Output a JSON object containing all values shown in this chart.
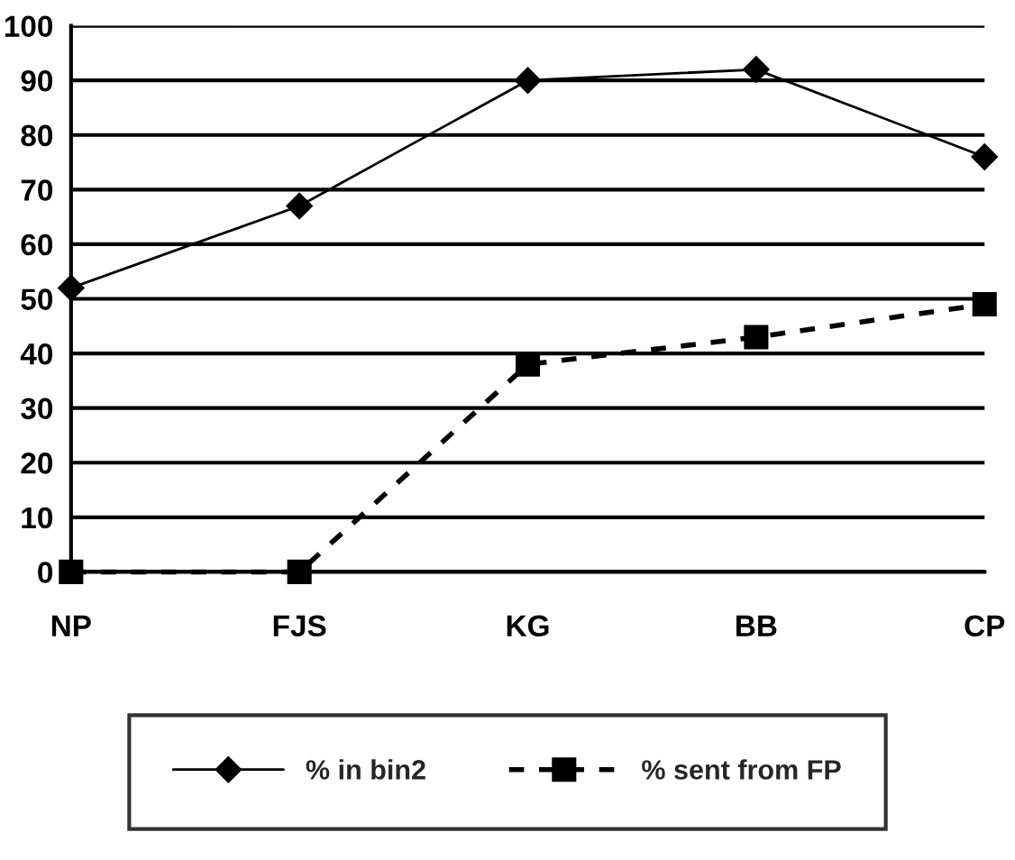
{
  "chart_data": {
    "type": "line",
    "categories": [
      "NP",
      "FJS",
      "KG",
      "BB",
      "CP"
    ],
    "series": [
      {
        "name": "% in bin2",
        "color": "#000000",
        "marker": "diamond",
        "line_style": "solid",
        "values": [
          52,
          67,
          90,
          92,
          76
        ]
      },
      {
        "name": "% sent from FP",
        "color": "#000000",
        "marker": "square",
        "line_style": "dotted",
        "values": [
          0,
          0,
          38,
          43,
          49
        ]
      }
    ],
    "ylim": [
      0,
      100
    ],
    "yticks": [
      0,
      10,
      20,
      30,
      40,
      50,
      60,
      70,
      80,
      90,
      100
    ],
    "grid": "y",
    "legend": "bottom"
  }
}
